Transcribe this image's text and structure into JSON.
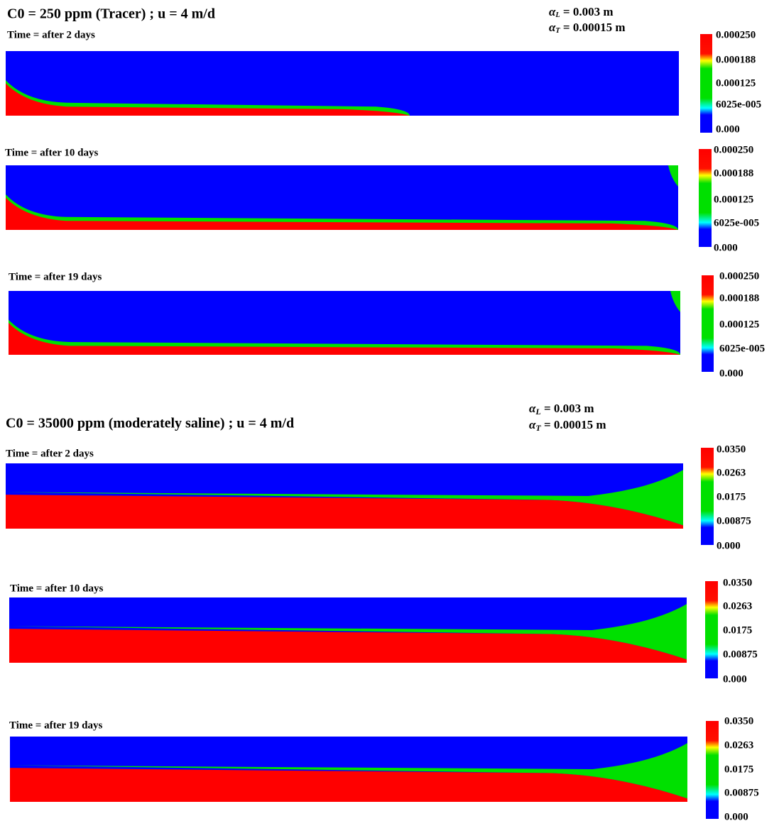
{
  "sections": [
    {
      "title": "C0 = 250 ppm (Tracer) ; u = 4  m/d",
      "alpha_l": {
        "symbol": "α",
        "sub": "L",
        "text": " = 0.003 m"
      },
      "alpha_t": {
        "symbol": "α",
        "sub": "T",
        "text": " = 0.00015 m"
      },
      "panels": [
        {
          "time_label": "Time = after 2 days",
          "colorbar_labels": [
            "0.000250",
            "0.000188",
            "0.000125",
            "6025e-005",
            "0.000"
          ]
        },
        {
          "time_label": "Time = after 10 days",
          "colorbar_labels": [
            "0.000250",
            "0.000188",
            "0.000125",
            "6025e-005",
            "0.000"
          ]
        },
        {
          "time_label": "Time = after 19 days",
          "colorbar_labels": [
            "0.000250",
            "0.000188",
            "0.000125",
            "6025e-005",
            "0.000"
          ]
        }
      ]
    },
    {
      "title": "C0 = 35000 ppm (moderately saline) ; u = 4 m/d",
      "alpha_l": {
        "symbol": "α",
        "sub": "L",
        "text": " = 0.003 m"
      },
      "alpha_t": {
        "symbol": "α",
        "sub": "T",
        "text": " = 0.00015 m"
      },
      "panels": [
        {
          "time_label": "Time = after 2 days",
          "colorbar_labels": [
            "0.0350",
            "0.0263",
            "0.0175",
            "0.00875",
            "0.000"
          ]
        },
        {
          "time_label": "Time = after 10 days",
          "colorbar_labels": [
            "0.0350",
            "0.0263",
            "0.0175",
            "0.00875",
            "0.000"
          ]
        },
        {
          "time_label": "Time = after 19 days",
          "colorbar_labels": [
            "0.0350",
            "0.0263",
            "0.0175",
            "0.00875",
            "0.000"
          ]
        }
      ]
    }
  ]
}
